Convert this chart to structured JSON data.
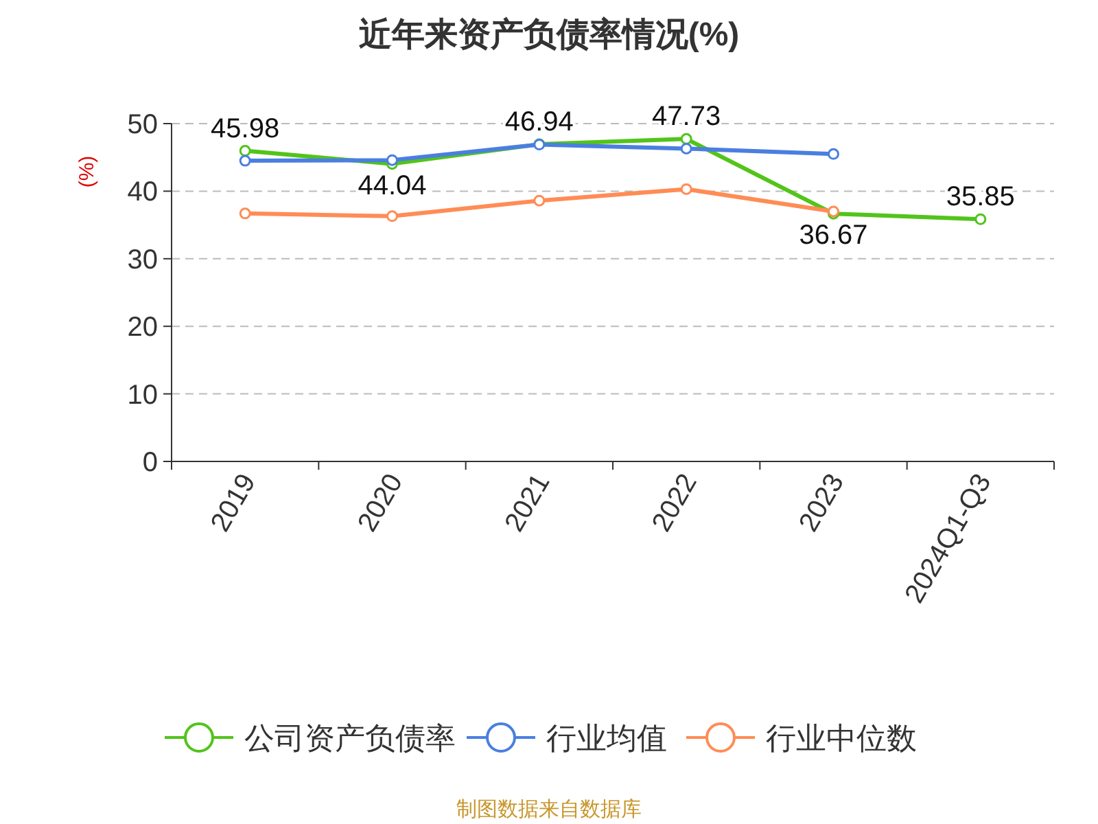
{
  "chart_data": {
    "type": "line",
    "title": "近年来资产负债率情况(%)",
    "ylabel": "(%)",
    "categories": [
      "2019",
      "2020",
      "2021",
      "2022",
      "2023",
      "2024Q1-Q3"
    ],
    "series": [
      {
        "name": "公司资产负债率",
        "color": "#52c41a",
        "values": [
          45.98,
          44.04,
          46.94,
          47.73,
          36.67,
          35.85
        ],
        "value_labels": [
          "45.98",
          "44.04",
          "46.94",
          "47.73",
          "36.67",
          "35.85"
        ]
      },
      {
        "name": "行业均值",
        "color": "#4a7fe0",
        "values": [
          44.5,
          44.6,
          46.9,
          46.3,
          45.5,
          null
        ]
      },
      {
        "name": "行业中位数",
        "color": "#ff8c55",
        "values": [
          36.7,
          36.3,
          38.6,
          40.3,
          37.0,
          null
        ]
      }
    ],
    "ylim": [
      0,
      50
    ],
    "yticks": [
      0,
      10,
      20,
      30,
      40,
      50
    ],
    "grid": "y",
    "legend": "bottom",
    "marker": "circle",
    "line_style": "solid",
    "annotations": [
      "制图数据来自数据库"
    ]
  }
}
